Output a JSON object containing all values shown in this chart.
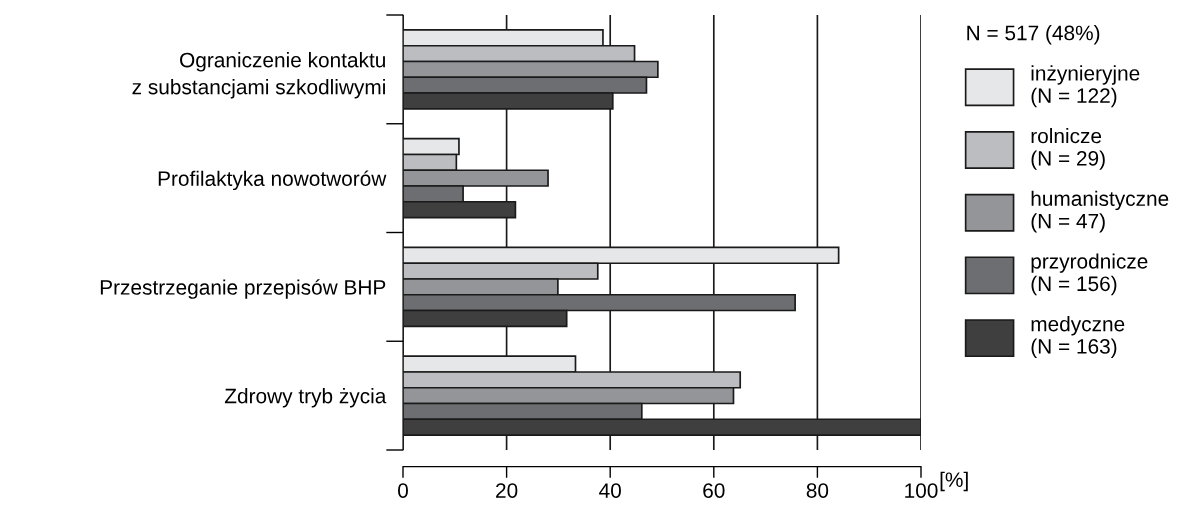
{
  "chart_data": {
    "type": "bar",
    "orientation": "horizontal",
    "categories": [
      "Ograniczenie kontaktu\nz substancjami szkodliwymi",
      "Profilaktyka nowotworów",
      "Przestrzeganie przepisów BHP",
      "Zdrowy tryb życia"
    ],
    "series": [
      {
        "name": "inżynieryjne\n(N = 122)",
        "color": "#e6e7e8",
        "values": [
          38.6,
          10.8,
          84.1,
          33.3
        ]
      },
      {
        "name": "rolnicze\n(N = 29)",
        "color": "#bcbdc0",
        "values": [
          44.7,
          10.3,
          37.6,
          65.1
        ]
      },
      {
        "name": "humanistyczne\n(N = 47)",
        "color": "#939598",
        "values": [
          49.2,
          28.0,
          29.9,
          63.8
        ]
      },
      {
        "name": "przyrodnicze\n(N = 156)",
        "color": "#6d6e71",
        "values": [
          47.0,
          11.6,
          75.7,
          46.1
        ]
      },
      {
        "name": "medyczne\n(N = 163)",
        "color": "#3f3f3f",
        "values": [
          40.5,
          21.7,
          31.6,
          100
        ]
      }
    ],
    "xlim": [
      0,
      100
    ],
    "xticks": [
      0,
      20,
      40,
      60,
      80,
      100
    ],
    "xlabel": "[%]",
    "grid": "x",
    "legend": "right",
    "legend_title": "N = 517 (48%)"
  }
}
